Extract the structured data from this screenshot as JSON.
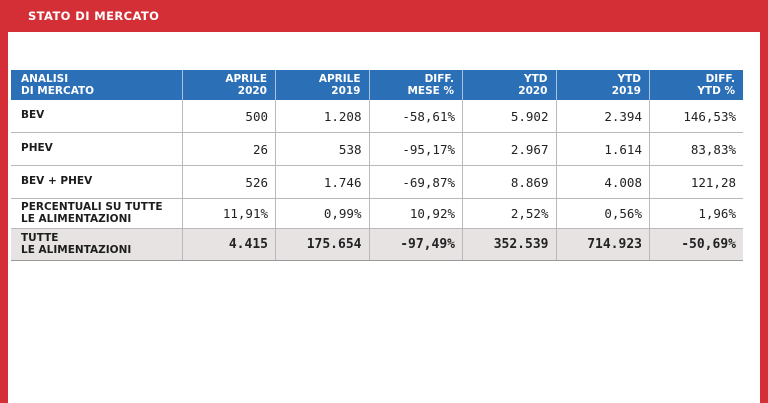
{
  "header": {
    "title": "STATO DI MERCATO"
  },
  "table": {
    "columns": [
      [
        "ANALISI",
        "DI MERCATO"
      ],
      [
        "APRILE",
        "2020"
      ],
      [
        "APRILE",
        "2019"
      ],
      [
        "DIFF.",
        "MESE %"
      ],
      [
        "YTD",
        "2020"
      ],
      [
        "YTD",
        "2019"
      ],
      [
        "DIFF.",
        "YTD %"
      ]
    ],
    "rows": [
      {
        "label": [
          "BEV"
        ],
        "values": [
          "500",
          "1.208",
          "-58,61%",
          "5.902",
          "2.394",
          "146,53%"
        ]
      },
      {
        "label": [
          "PHEV"
        ],
        "values": [
          "26",
          "538",
          "-95,17%",
          "2.967",
          "1.614",
          "83,83%"
        ]
      },
      {
        "label": [
          "BEV + PHEV"
        ],
        "values": [
          "526",
          "1.746",
          "-69,87%",
          "8.869",
          "4.008",
          "121,28"
        ]
      },
      {
        "label": [
          "PERCENTUALI SU TUTTE",
          "LE ALIMENTAZIONI"
        ],
        "values": [
          "11,91%",
          "0,99%",
          "10,92%",
          "2,52%",
          "0,56%",
          "1,96%"
        ]
      },
      {
        "label": [
          "TUTTE",
          "LE ALIMENTAZIONI"
        ],
        "values": [
          "4.415",
          "175.654",
          "-97,49%",
          "352.539",
          "714.923",
          "-50,69%"
        ]
      }
    ]
  },
  "colors": {
    "frame": "#d42f37",
    "header_row": "#2b6fb6",
    "total_row": "#e7e3e3"
  }
}
